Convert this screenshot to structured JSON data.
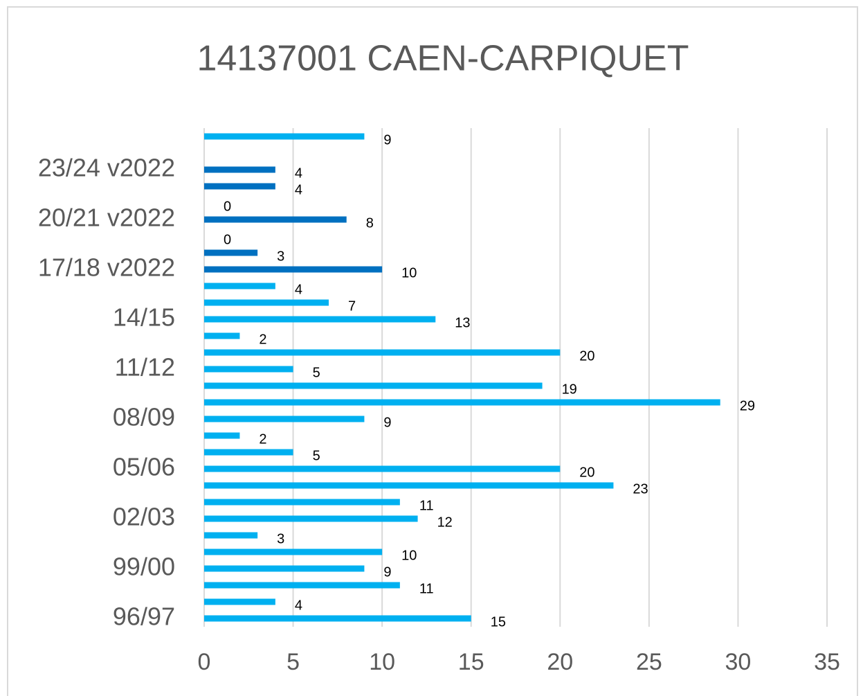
{
  "chart_data": {
    "type": "bar",
    "orientation": "horizontal",
    "title": "14137001 CAEN-CARPIQUET",
    "categories": [
      "96/97",
      null,
      null,
      "99/00",
      null,
      null,
      "02/03",
      null,
      null,
      "05/06",
      null,
      null,
      "08/09",
      null,
      null,
      "11/12",
      null,
      null,
      "14/15",
      null,
      null,
      "17/18 v2022",
      null,
      null,
      "20/21 v2022",
      null,
      null,
      "23/24 v2022",
      null,
      null
    ],
    "values": [
      15,
      4,
      11,
      9,
      10,
      3,
      12,
      11,
      23,
      20,
      5,
      2,
      9,
      29,
      19,
      5,
      20,
      2,
      13,
      7,
      4,
      10,
      3,
      0,
      8,
      0,
      4,
      4,
      null,
      9
    ],
    "colors": [
      "#00b0f0",
      "#00b0f0",
      "#00b0f0",
      "#00b0f0",
      "#00b0f0",
      "#00b0f0",
      "#00b0f0",
      "#00b0f0",
      "#00b0f0",
      "#00b0f0",
      "#00b0f0",
      "#00b0f0",
      "#00b0f0",
      "#00b0f0",
      "#00b0f0",
      "#00b0f0",
      "#00b0f0",
      "#00b0f0",
      "#00b0f0",
      "#00b0f0",
      "#00b0f0",
      "#0070c0",
      "#0070c0",
      "#0070c0",
      "#0070c0",
      "#0070c0",
      "#0070c0",
      "#0070c0",
      "#0070c0",
      "#00b0f0"
    ],
    "xlim": [
      0,
      35
    ],
    "xticks": [
      0,
      5,
      10,
      15,
      20,
      25,
      30,
      35
    ],
    "grid": true
  }
}
